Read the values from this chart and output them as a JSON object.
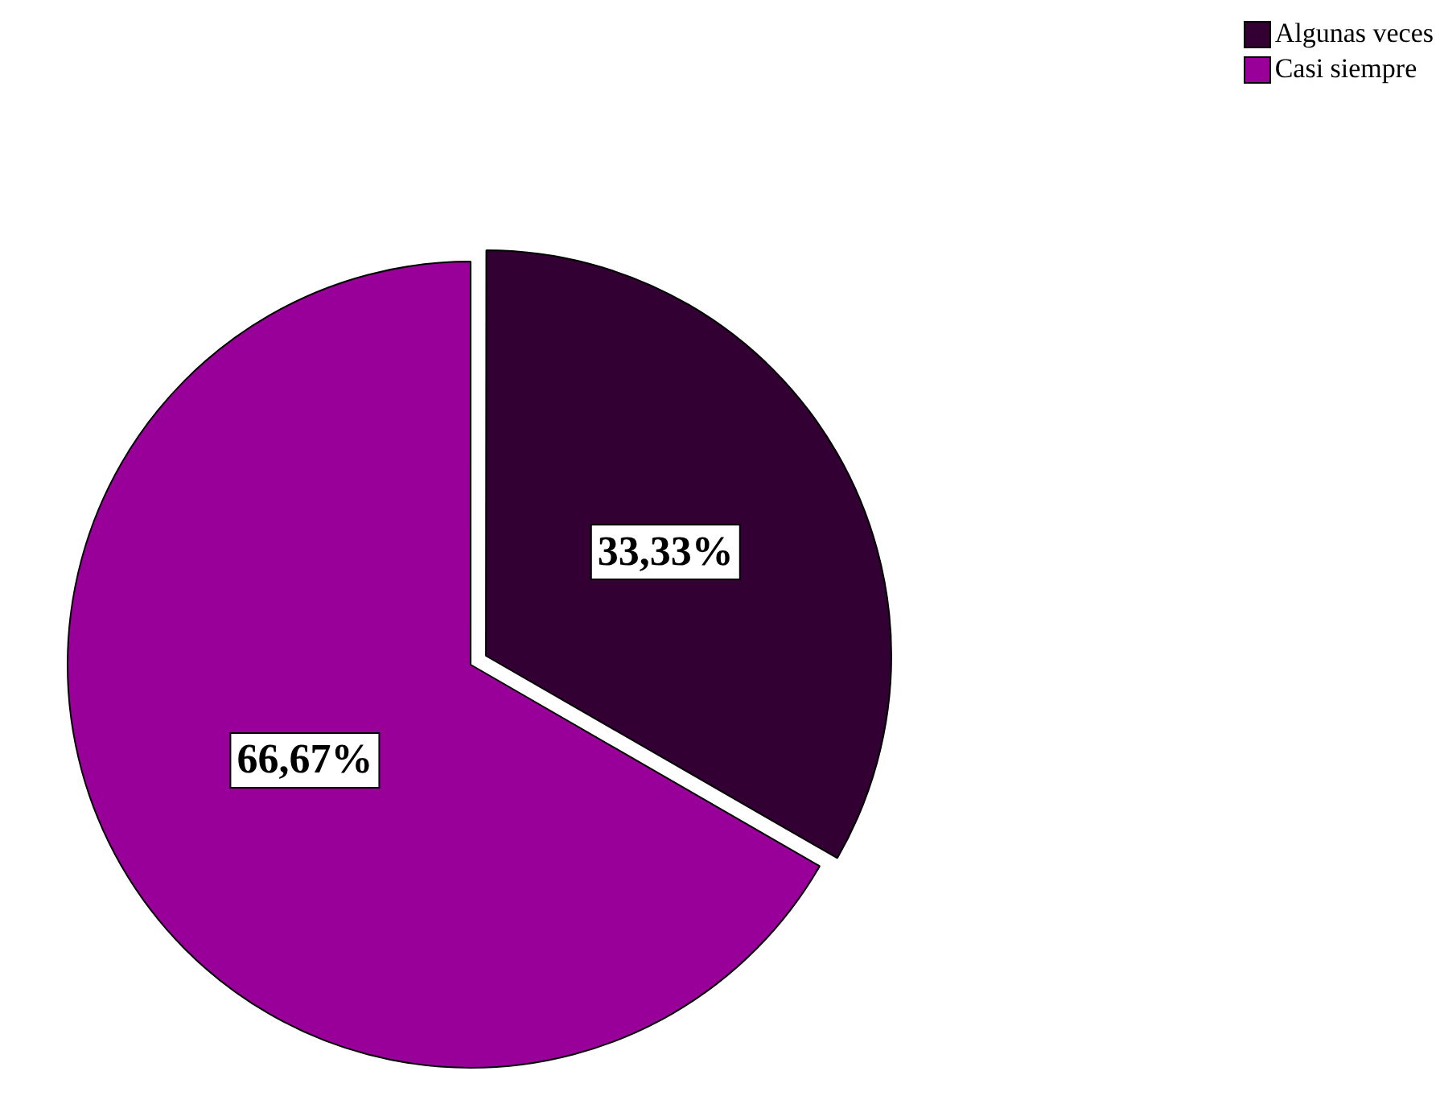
{
  "chart_data": {
    "type": "pie",
    "categories": [
      "Algunas veces",
      "Casi siempre"
    ],
    "values": [
      33.33,
      66.67
    ],
    "colors": [
      "#330033",
      "#990099"
    ],
    "value_labels": [
      "33,33%",
      "66,67%"
    ],
    "legend": "top right"
  }
}
